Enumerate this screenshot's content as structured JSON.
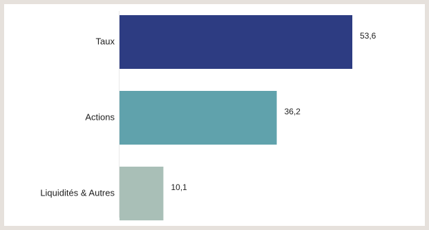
{
  "chart_data": {
    "type": "bar",
    "orientation": "horizontal",
    "categories": [
      "Taux",
      "Actions",
      "Liquidités & Autres"
    ],
    "values": [
      53.6,
      36.2,
      10.1
    ],
    "value_labels": [
      "53,6",
      "36,2",
      "10,1"
    ],
    "colors": [
      "#2d3c82",
      "#60a2ac",
      "#a9bfb7"
    ],
    "xlim": [
      0,
      60
    ],
    "grid": false,
    "legend": "none"
  }
}
